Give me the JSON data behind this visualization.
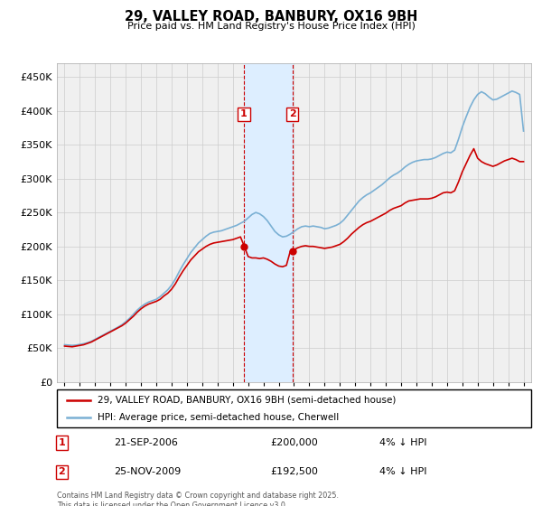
{
  "title": "29, VALLEY ROAD, BANBURY, OX16 9BH",
  "subtitle": "Price paid vs. HM Land Registry's House Price Index (HPI)",
  "legend_line1": "29, VALLEY ROAD, BANBURY, OX16 9BH (semi-detached house)",
  "legend_line2": "HPI: Average price, semi-detached house, Cherwell",
  "footer": "Contains HM Land Registry data © Crown copyright and database right 2025.\nThis data is licensed under the Open Government Licence v3.0.",
  "ytick_values": [
    0,
    50000,
    100000,
    150000,
    200000,
    250000,
    300000,
    350000,
    400000,
    450000
  ],
  "ylim": [
    0,
    470000
  ],
  "xlim_start": 1994.5,
  "xlim_end": 2025.5,
  "purchase1_date": 2006.72,
  "purchase1_price": 200000,
  "purchase1_label": "1",
  "purchase2_date": 2009.9,
  "purchase2_price": 192500,
  "purchase2_label": "2",
  "red_color": "#cc0000",
  "blue_color": "#7ab0d4",
  "shade_color": "#ddeeff",
  "grid_color": "#cccccc",
  "bg_color": "#f0f0f0",
  "hpi_data_x": [
    1995.0,
    1995.25,
    1995.5,
    1995.75,
    1996.0,
    1996.25,
    1996.5,
    1996.75,
    1997.0,
    1997.25,
    1997.5,
    1997.75,
    1998.0,
    1998.25,
    1998.5,
    1998.75,
    1999.0,
    1999.25,
    1999.5,
    1999.75,
    2000.0,
    2000.25,
    2000.5,
    2000.75,
    2001.0,
    2001.25,
    2001.5,
    2001.75,
    2002.0,
    2002.25,
    2002.5,
    2002.75,
    2003.0,
    2003.25,
    2003.5,
    2003.75,
    2004.0,
    2004.25,
    2004.5,
    2004.75,
    2005.0,
    2005.25,
    2005.5,
    2005.75,
    2006.0,
    2006.25,
    2006.5,
    2006.75,
    2007.0,
    2007.25,
    2007.5,
    2007.75,
    2008.0,
    2008.25,
    2008.5,
    2008.75,
    2009.0,
    2009.25,
    2009.5,
    2009.75,
    2010.0,
    2010.25,
    2010.5,
    2010.75,
    2011.0,
    2011.25,
    2011.5,
    2011.75,
    2012.0,
    2012.25,
    2012.5,
    2012.75,
    2013.0,
    2013.25,
    2013.5,
    2013.75,
    2014.0,
    2014.25,
    2014.5,
    2014.75,
    2015.0,
    2015.25,
    2015.5,
    2015.75,
    2016.0,
    2016.25,
    2016.5,
    2016.75,
    2017.0,
    2017.25,
    2017.5,
    2017.75,
    2018.0,
    2018.25,
    2018.5,
    2018.75,
    2019.0,
    2019.25,
    2019.5,
    2019.75,
    2020.0,
    2020.25,
    2020.5,
    2020.75,
    2021.0,
    2021.25,
    2021.5,
    2021.75,
    2022.0,
    2022.25,
    2022.5,
    2022.75,
    2023.0,
    2023.25,
    2023.5,
    2023.75,
    2024.0,
    2024.25,
    2024.5,
    2024.75,
    2025.0
  ],
  "hpi_data_y": [
    55000,
    54500,
    54000,
    54500,
    55500,
    56500,
    58000,
    60000,
    63000,
    66000,
    69000,
    72000,
    75000,
    78000,
    81000,
    84500,
    89000,
    94000,
    100000,
    106000,
    111000,
    115000,
    118000,
    120000,
    122000,
    126000,
    131000,
    136000,
    143000,
    152000,
    163000,
    173000,
    182000,
    191000,
    198000,
    205000,
    210000,
    215000,
    219000,
    221000,
    222000,
    223000,
    225000,
    227000,
    229000,
    231000,
    234000,
    237000,
    242000,
    247000,
    250000,
    248000,
    244000,
    238000,
    230000,
    222000,
    217000,
    214000,
    215000,
    218000,
    222000,
    226000,
    229000,
    230000,
    229000,
    230000,
    229000,
    228000,
    226000,
    227000,
    229000,
    231000,
    234000,
    239000,
    246000,
    253000,
    260000,
    267000,
    272000,
    276000,
    279000,
    283000,
    287000,
    291000,
    296000,
    301000,
    305000,
    308000,
    312000,
    317000,
    321000,
    324000,
    326000,
    327000,
    328000,
    328000,
    329000,
    331000,
    334000,
    337000,
    339000,
    338000,
    342000,
    358000,
    376000,
    391000,
    405000,
    416000,
    424000,
    428000,
    425000,
    420000,
    416000,
    417000,
    420000,
    423000,
    426000,
    429000,
    427000,
    424000,
    370000
  ],
  "price_data_x": [
    1995.0,
    1995.25,
    1995.5,
    1995.75,
    1996.0,
    1996.25,
    1996.5,
    1996.75,
    1997.0,
    1997.25,
    1997.5,
    1997.75,
    1998.0,
    1998.25,
    1998.5,
    1998.75,
    1999.0,
    1999.25,
    1999.5,
    1999.75,
    2000.0,
    2000.25,
    2000.5,
    2000.75,
    2001.0,
    2001.25,
    2001.5,
    2001.75,
    2002.0,
    2002.25,
    2002.5,
    2002.75,
    2003.0,
    2003.25,
    2003.5,
    2003.75,
    2004.0,
    2004.25,
    2004.5,
    2004.75,
    2005.0,
    2005.25,
    2005.5,
    2005.75,
    2006.0,
    2006.25,
    2006.5,
    2006.75,
    2007.0,
    2007.25,
    2007.5,
    2007.75,
    2008.0,
    2008.25,
    2008.5,
    2008.75,
    2009.0,
    2009.25,
    2009.5,
    2009.75,
    2010.0,
    2010.25,
    2010.5,
    2010.75,
    2011.0,
    2011.25,
    2011.5,
    2011.75,
    2012.0,
    2012.25,
    2012.5,
    2012.75,
    2013.0,
    2013.25,
    2013.5,
    2013.75,
    2014.0,
    2014.25,
    2014.5,
    2014.75,
    2015.0,
    2015.25,
    2015.5,
    2015.75,
    2016.0,
    2016.25,
    2016.5,
    2016.75,
    2017.0,
    2017.25,
    2017.5,
    2017.75,
    2018.0,
    2018.25,
    2018.5,
    2018.75,
    2019.0,
    2019.25,
    2019.5,
    2019.75,
    2020.0,
    2020.25,
    2020.5,
    2020.75,
    2021.0,
    2021.25,
    2021.5,
    2021.75,
    2022.0,
    2022.25,
    2022.5,
    2022.75,
    2023.0,
    2023.25,
    2023.5,
    2023.75,
    2024.0,
    2024.25,
    2024.5,
    2024.75,
    2025.0
  ],
  "price_data_y": [
    53000,
    52500,
    52000,
    53000,
    54000,
    55000,
    57000,
    59000,
    62000,
    65000,
    68000,
    71000,
    74000,
    77000,
    80000,
    83000,
    87000,
    92000,
    97000,
    103000,
    108000,
    112000,
    115000,
    117000,
    119000,
    122000,
    127000,
    131000,
    137000,
    145000,
    155000,
    164000,
    172000,
    180000,
    186000,
    192000,
    196000,
    200000,
    203000,
    205000,
    206000,
    207000,
    208000,
    209000,
    210000,
    212000,
    214000,
    200000,
    185000,
    183000,
    183000,
    182000,
    183000,
    181000,
    178000,
    174000,
    171000,
    170000,
    172000,
    192500,
    195000,
    198000,
    200000,
    201000,
    200000,
    200000,
    199000,
    198000,
    197000,
    198000,
    199000,
    201000,
    203000,
    207000,
    212000,
    218000,
    223000,
    228000,
    232000,
    235000,
    237000,
    240000,
    243000,
    246000,
    249000,
    253000,
    256000,
    258000,
    260000,
    264000,
    267000,
    268000,
    269000,
    270000,
    270000,
    270000,
    271000,
    273000,
    276000,
    279000,
    280000,
    279000,
    282000,
    295000,
    310000,
    322000,
    334000,
    344000,
    330000,
    325000,
    322000,
    320000,
    318000,
    320000,
    323000,
    326000,
    328000,
    330000,
    328000,
    325000,
    325000
  ]
}
